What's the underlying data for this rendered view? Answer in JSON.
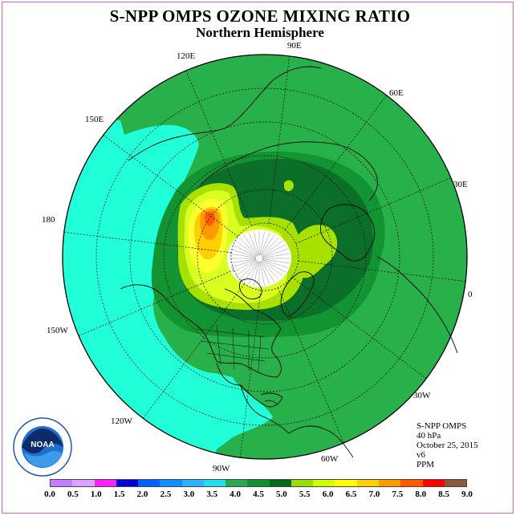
{
  "title": "S-NPP OMPS OZONE MIXING RATIO",
  "subtitle": "Northern Hemisphere",
  "longitude_labels": {
    "lon_90e": "90E",
    "lon_60e": "60E",
    "lon_30e": "30E",
    "lon_0": "0",
    "lon_30w": "30W",
    "lon_60w": "60W",
    "lon_90w": "90W",
    "lon_120w": "120W",
    "lon_150w": "150W",
    "lon_180": "180",
    "lon_150e": "150E",
    "lon_120e": "120E"
  },
  "info": {
    "instrument": "S-NPP OMPS",
    "level": "40 hPa",
    "date": "October 25, 2015",
    "version": "v6",
    "units": "PPM"
  },
  "logo_text": "NOAA",
  "colorbar": {
    "ticks": [
      "0.0",
      "0.5",
      "1.0",
      "1.5",
      "2.0",
      "2.5",
      "3.0",
      "3.5",
      "4.0",
      "4.5",
      "5.0",
      "5.5",
      "6.0",
      "6.5",
      "7.0",
      "7.5",
      "8.0",
      "8.5",
      "9.0"
    ],
    "colors": [
      "#c080ff",
      "#e0a0ff",
      "#ff20ff",
      "#0000d0",
      "#0060ff",
      "#1090ff",
      "#30b0ff",
      "#20e0f0",
      "#28a850",
      "#109030",
      "#006a1c",
      "#9add00",
      "#ccff00",
      "#ffff00",
      "#ffd000",
      "#ff9a00",
      "#ff5a00",
      "#ff0000",
      "#8b5a3c"
    ]
  },
  "map_colors": {
    "c35": "#20ffd8",
    "c40": "#28b04a",
    "c45": "#129432",
    "c50": "#0b6f2a",
    "c55": "#a8e000",
    "c60": "#d8ff20",
    "c65": "#ffff30",
    "c70": "#ffd000",
    "c75": "#ff9a00",
    "c80": "#ff5a00",
    "nodata": "#ffffff"
  }
}
